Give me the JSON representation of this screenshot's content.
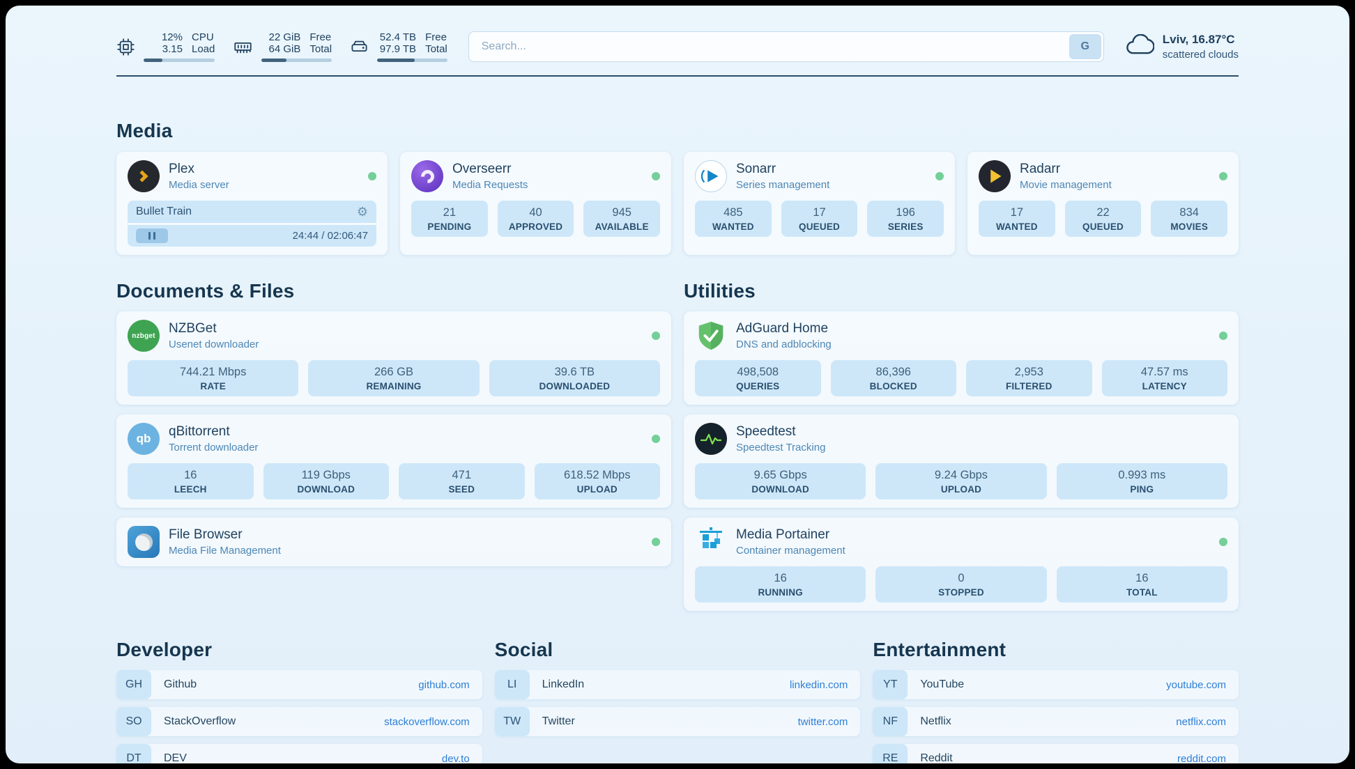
{
  "topbar": {
    "resources": [
      {
        "icon": "cpu-icon",
        "value1": "12%",
        "label1": "CPU",
        "value2": "3.15",
        "label2": "Load",
        "progress": 26
      },
      {
        "icon": "memory-icon",
        "value1": "22 GiB",
        "label1": "Free",
        "value2": "64 GiB",
        "label2": "Total",
        "progress": 35
      },
      {
        "icon": "disk-icon",
        "value1": "52.4 TB",
        "label1": "Free",
        "value2": "97.9 TB",
        "label2": "Total",
        "progress": 54
      }
    ],
    "search": {
      "placeholder": "Search...",
      "button_label": "G"
    },
    "weather": {
      "location": "Lviv, 16.87°C",
      "condition": "scattered clouds"
    }
  },
  "media": {
    "title": "Media",
    "services": [
      {
        "name": "Plex",
        "desc": "Media server",
        "player": {
          "title": "Bullet Train",
          "time": "24:44 / 02:06:47"
        }
      },
      {
        "name": "Overseerr",
        "desc": "Media Requests",
        "stats": [
          {
            "value": "21",
            "label": "PENDING"
          },
          {
            "value": "40",
            "label": "APPROVED"
          },
          {
            "value": "945",
            "label": "AVAILABLE"
          }
        ]
      },
      {
        "name": "Sonarr",
        "desc": "Series management",
        "stats": [
          {
            "value": "485",
            "label": "WANTED"
          },
          {
            "value": "17",
            "label": "QUEUED"
          },
          {
            "value": "196",
            "label": "SERIES"
          }
        ]
      },
      {
        "name": "Radarr",
        "desc": "Movie management",
        "stats": [
          {
            "value": "17",
            "label": "WANTED"
          },
          {
            "value": "22",
            "label": "QUEUED"
          },
          {
            "value": "834",
            "label": "MOVIES"
          }
        ]
      }
    ]
  },
  "documents": {
    "title": "Documents & Files",
    "services": [
      {
        "name": "NZBGet",
        "desc": "Usenet downloader",
        "icon_text": "nzbget",
        "stats": [
          {
            "value": "744.21 Mbps",
            "label": "RATE"
          },
          {
            "value": "266 GB",
            "label": "REMAINING"
          },
          {
            "value": "39.6 TB",
            "label": "DOWNLOADED"
          }
        ]
      },
      {
        "name": "qBittorrent",
        "desc": "Torrent downloader",
        "icon_text": "qb",
        "stats": [
          {
            "value": "16",
            "label": "LEECH"
          },
          {
            "value": "119 Gbps",
            "label": "DOWNLOAD"
          },
          {
            "value": "471",
            "label": "SEED"
          },
          {
            "value": "618.52 Mbps",
            "label": "UPLOAD"
          }
        ]
      },
      {
        "name": "File Browser",
        "desc": "Media File Management"
      }
    ]
  },
  "utilities": {
    "title": "Utilities",
    "services": [
      {
        "name": "AdGuard Home",
        "desc": "DNS and adblocking",
        "stats": [
          {
            "value": "498,508",
            "label": "QUERIES"
          },
          {
            "value": "86,396",
            "label": "BLOCKED"
          },
          {
            "value": "2,953",
            "label": "FILTERED"
          },
          {
            "value": "47.57 ms",
            "label": "LATENCY"
          }
        ]
      },
      {
        "name": "Speedtest",
        "desc": "Speedtest Tracking",
        "stats": [
          {
            "value": "9.65 Gbps",
            "label": "DOWNLOAD"
          },
          {
            "value": "9.24 Gbps",
            "label": "UPLOAD"
          },
          {
            "value": "0.993 ms",
            "label": "PING"
          }
        ]
      },
      {
        "name": "Media Portainer",
        "desc": "Container management",
        "stats": [
          {
            "value": "16",
            "label": "RUNNING"
          },
          {
            "value": "0",
            "label": "STOPPED"
          },
          {
            "value": "16",
            "label": "TOTAL"
          }
        ]
      }
    ]
  },
  "bookmarks": [
    {
      "title": "Developer",
      "items": [
        {
          "abbr": "GH",
          "name": "Github",
          "url": "github.com"
        },
        {
          "abbr": "SO",
          "name": "StackOverflow",
          "url": "stackoverflow.com"
        },
        {
          "abbr": "DT",
          "name": "DEV",
          "url": "dev.to"
        }
      ]
    },
    {
      "title": "Social",
      "items": [
        {
          "abbr": "LI",
          "name": "LinkedIn",
          "url": "linkedin.com"
        },
        {
          "abbr": "TW",
          "name": "Twitter",
          "url": "twitter.com"
        }
      ]
    },
    {
      "title": "Entertainment",
      "items": [
        {
          "abbr": "YT",
          "name": "YouTube",
          "url": "youtube.com"
        },
        {
          "abbr": "NF",
          "name": "Netflix",
          "url": "netflix.com"
        },
        {
          "abbr": "RE",
          "name": "Reddit",
          "url": "reddit.com"
        }
      ]
    }
  ]
}
